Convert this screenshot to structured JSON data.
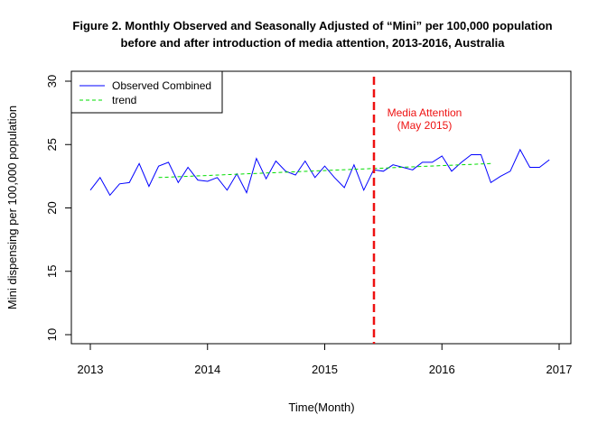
{
  "chart_data": {
    "type": "line",
    "title_line1": "Figure 2. Monthly Observed and Seasonally Adjusted of “Mini” per 100,000 population",
    "title_line2": "before and after introduction of media attention, 2013-2016, Australia",
    "xlabel": "Time(Month)",
    "ylabel": "Mini dispensing per 100,000 population",
    "xlim": [
      2013,
      2017
    ],
    "ylim": [
      10,
      30
    ],
    "x_ticks": [
      "2013",
      "2014",
      "2015",
      "2016",
      "2017"
    ],
    "y_ticks": [
      "10",
      "15",
      "20",
      "25",
      "30"
    ],
    "grid": false,
    "legend_position": "top-left",
    "colors": {
      "observed": "#0000ff",
      "trend": "#00dd00",
      "intervention": "#ee1111"
    },
    "series": [
      {
        "name": "Observed Combined",
        "style": "solid",
        "x": [
          2013.0,
          2013.083,
          2013.167,
          2013.25,
          2013.333,
          2013.417,
          2013.5,
          2013.583,
          2013.667,
          2013.75,
          2013.833,
          2013.917,
          2014.0,
          2014.083,
          2014.167,
          2014.25,
          2014.333,
          2014.417,
          2014.5,
          2014.583,
          2014.667,
          2014.75,
          2014.833,
          2014.917,
          2015.0,
          2015.083,
          2015.167,
          2015.25,
          2015.333,
          2015.417,
          2015.5,
          2015.583,
          2015.667,
          2015.75,
          2015.833,
          2015.917,
          2016.0,
          2016.083,
          2016.167,
          2016.25,
          2016.333,
          2016.417,
          2016.5,
          2016.583,
          2016.667,
          2016.75,
          2016.833,
          2016.917
        ],
        "y": [
          21.4,
          22.4,
          21.0,
          21.9,
          22.0,
          23.5,
          21.7,
          23.3,
          23.6,
          22.0,
          23.2,
          22.2,
          22.1,
          22.4,
          21.4,
          22.7,
          21.2,
          23.9,
          22.3,
          23.7,
          22.9,
          22.6,
          23.7,
          22.4,
          23.3,
          22.4,
          21.6,
          23.4,
          21.4,
          23.0,
          22.9,
          23.4,
          23.2,
          23.0,
          23.6,
          23.6,
          24.1,
          22.9,
          23.6,
          24.2,
          24.2,
          22.0,
          22.5,
          22.9,
          24.6,
          23.2,
          23.2,
          23.8
        ]
      },
      {
        "name": "trend",
        "style": "dashed",
        "x": [
          2013.583,
          2016.417
        ],
        "y": [
          22.4,
          23.5
        ]
      }
    ],
    "annotation": {
      "line_x": 2015.42,
      "label_line1": "Media Attention",
      "label_line2": "(May 2015)"
    }
  }
}
